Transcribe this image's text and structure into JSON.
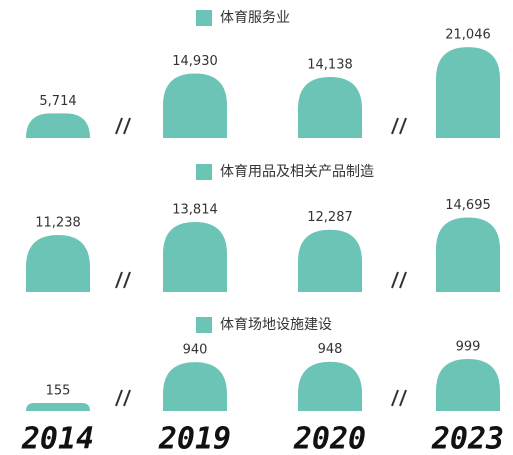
{
  "chart_data": [
    {
      "type": "bar",
      "legend": "体育服务业",
      "color": "#6cc4b6",
      "values": [
        5714,
        14930,
        14138,
        21046
      ],
      "value_labels": [
        "5,714",
        "14,930",
        "14,138",
        "21,046"
      ],
      "ylim": [
        0,
        22000
      ]
    },
    {
      "type": "bar",
      "legend": "体育用品及相关产品制造",
      "color": "#6cc4b6",
      "values": [
        11238,
        13814,
        12287,
        14695
      ],
      "value_labels": [
        "11,238",
        "13,814",
        "12,287",
        "14,695"
      ],
      "ylim": [
        0,
        15000
      ]
    },
    {
      "type": "bar",
      "legend": "体育场地设施建设",
      "color": "#6cc4b6",
      "values": [
        155,
        940,
        948,
        999
      ],
      "value_labels": [
        "155",
        "940",
        "948",
        "999"
      ],
      "ylim": [
        0,
        1000
      ],
      "categories": [
        "2014",
        "2019",
        "2020",
        "2023"
      ]
    }
  ]
}
